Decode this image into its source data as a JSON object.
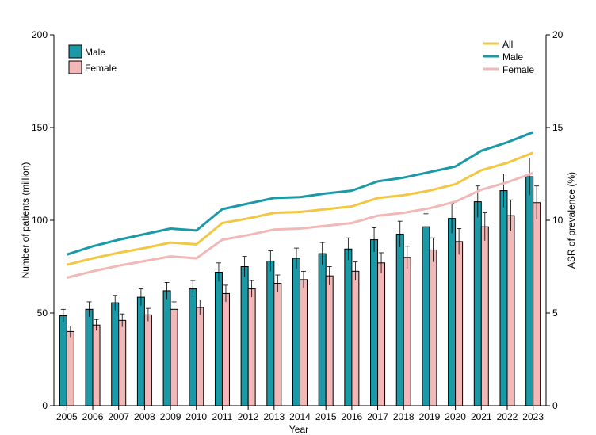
{
  "chart_data": {
    "type": "bar+line",
    "xlabel": "Year",
    "ylabel_left": "Number of patients (million)",
    "ylabel_right": "ASR of prevalence (%)",
    "ylim_left": [
      0,
      200
    ],
    "ylim_right": [
      0,
      20
    ],
    "yticks_left": [
      "0",
      "50",
      "100",
      "150",
      "200"
    ],
    "yticks_right": [
      "0",
      "5",
      "10",
      "15",
      "20"
    ],
    "categories": [
      "2005",
      "2006",
      "2007",
      "2008",
      "2009",
      "2010",
      "2011",
      "2012",
      "2013",
      "2014",
      "2015",
      "2016",
      "2017",
      "2018",
      "2019",
      "2020",
      "2021",
      "2022",
      "2023"
    ],
    "bar_series": [
      {
        "name": "Male",
        "color": "#1a9aa6",
        "values": [
          48.5,
          52,
          55.5,
          58.5,
          62,
          63,
          72,
          75,
          78,
          79.5,
          82,
          84.5,
          89.5,
          92.5,
          96.5,
          101,
          110,
          116,
          123.5
        ],
        "errors": [
          3.5,
          4,
          4,
          4.5,
          4.5,
          4.5,
          5,
          5.5,
          5.5,
          5.5,
          6,
          6,
          6.5,
          7,
          7,
          8,
          8.5,
          9,
          10
        ]
      },
      {
        "name": "Female",
        "color": "#f2b8b8",
        "values": [
          40,
          43.5,
          46,
          49,
          52,
          53,
          60.5,
          63,
          66,
          68,
          70,
          72.5,
          77,
          80,
          84,
          88.5,
          96.5,
          102.5,
          109.5
        ],
        "errors": [
          3,
          3,
          3.5,
          3.5,
          4,
          4,
          4.5,
          4.5,
          4.5,
          4.5,
          5,
          5,
          5.5,
          6,
          6.5,
          7,
          7.5,
          8.5,
          9
        ]
      }
    ],
    "line_series": [
      {
        "name": "All",
        "color": "#f2c744",
        "values": [
          7.6,
          7.95,
          8.25,
          8.5,
          8.8,
          8.7,
          9.85,
          10.1,
          10.4,
          10.45,
          10.6,
          10.75,
          11.2,
          11.35,
          11.6,
          11.95,
          12.7,
          13.1,
          13.65
        ]
      },
      {
        "name": "Male",
        "color": "#1a9aa6",
        "values": [
          8.15,
          8.6,
          8.95,
          9.25,
          9.55,
          9.45,
          10.6,
          10.9,
          11.2,
          11.25,
          11.45,
          11.6,
          12.1,
          12.3,
          12.6,
          12.9,
          13.75,
          14.2,
          14.75
        ]
      },
      {
        "name": "Female",
        "color": "#f2b8b8",
        "values": [
          6.9,
          7.25,
          7.55,
          7.8,
          8.05,
          7.95,
          8.95,
          9.2,
          9.5,
          9.55,
          9.7,
          9.85,
          10.25,
          10.4,
          10.65,
          11.0,
          11.65,
          12.05,
          12.55
        ]
      }
    ],
    "legend_bars": {
      "position": "top-left",
      "items": [
        "Male",
        "Female"
      ]
    },
    "legend_lines": {
      "position": "top-right",
      "items": [
        "All",
        "Male",
        "Female"
      ]
    },
    "grid": false
  }
}
